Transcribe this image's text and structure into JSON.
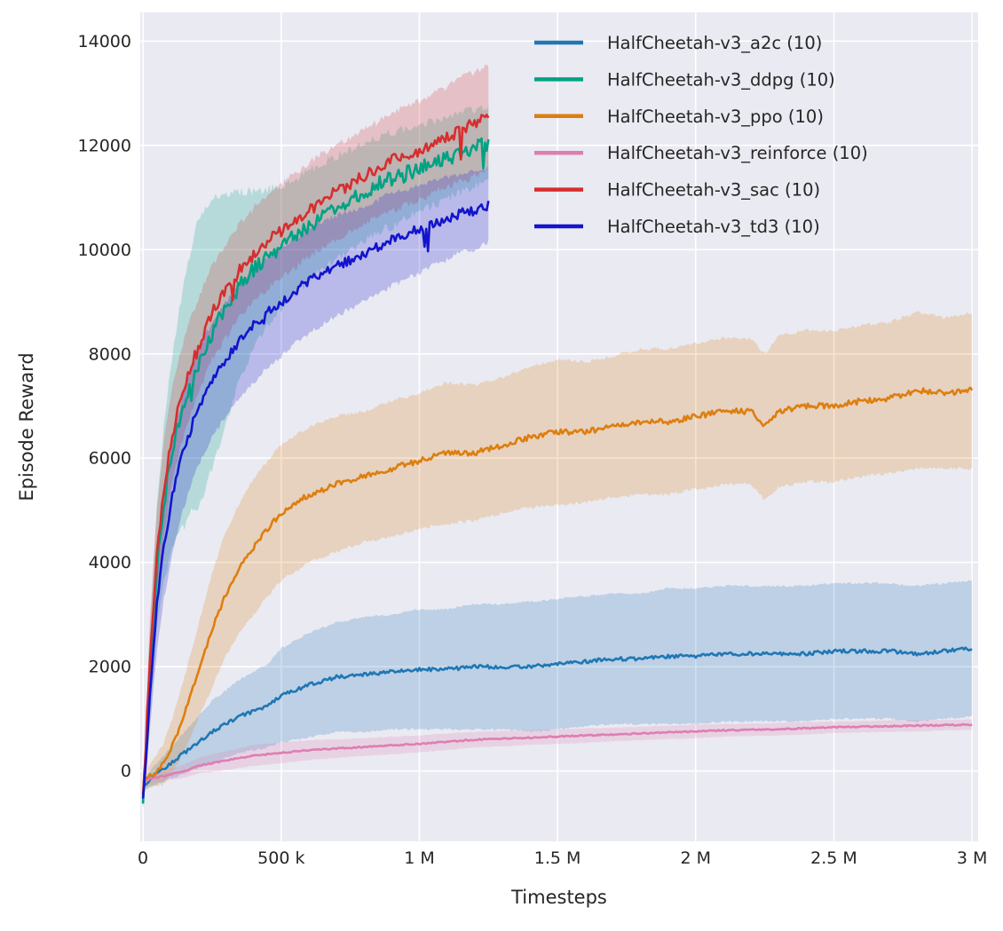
{
  "chart_data": {
    "type": "line",
    "title": "",
    "xlabel": "Timesteps",
    "ylabel": "Episode Reward",
    "x_unit": "thousands of timesteps",
    "xlim": [
      -10,
      3022
    ],
    "ylim": [
      -1350,
      14550
    ],
    "grid": true,
    "background": "#eaeaf2",
    "grid_color": "#ffffff",
    "text_color": "#262626",
    "band_opacity": 0.22,
    "legend_position": "upper right inside",
    "x_ticks": [
      {
        "v": 0,
        "label": "0"
      },
      {
        "v": 500,
        "label": "500 k"
      },
      {
        "v": 1000,
        "label": "1 M"
      },
      {
        "v": 1500,
        "label": "1.5 M"
      },
      {
        "v": 2000,
        "label": "2 M"
      },
      {
        "v": 2500,
        "label": "2.5 M"
      },
      {
        "v": 3000,
        "label": "3 M"
      }
    ],
    "y_ticks": [
      {
        "v": 0,
        "label": "0"
      },
      {
        "v": 2000,
        "label": "2000"
      },
      {
        "v": 4000,
        "label": "4000"
      },
      {
        "v": 6000,
        "label": "6000"
      },
      {
        "v": 8000,
        "label": "8000"
      },
      {
        "v": 10000,
        "label": "10000"
      },
      {
        "v": 12000,
        "label": "12000"
      },
      {
        "v": 14000,
        "label": "14000"
      }
    ],
    "series": [
      {
        "name": "HalfCheetah-v3_a2c (10)",
        "key": "a2c",
        "color": "#1f77b4",
        "noise": 35,
        "spiky": false,
        "x": [
          0,
          25,
          50,
          75,
          100,
          150,
          200,
          250,
          300,
          350,
          400,
          450,
          500,
          600,
          700,
          800,
          900,
          1000,
          1100,
          1200,
          1300,
          1400,
          1500,
          1600,
          1700,
          1800,
          1900,
          2000,
          2100,
          2200,
          2250,
          2300,
          2400,
          2500,
          2600,
          2700,
          2800,
          2900,
          3000
        ],
        "mean": [
          -300,
          -150,
          -50,
          50,
          150,
          350,
          550,
          750,
          900,
          1050,
          1150,
          1250,
          1450,
          1650,
          1800,
          1850,
          1900,
          1950,
          1950,
          2000,
          2000,
          2000,
          2050,
          2100,
          2150,
          2150,
          2200,
          2200,
          2250,
          2250,
          2250,
          2250,
          2250,
          2300,
          2300,
          2300,
          2250,
          2300,
          2350
        ],
        "band": [
          100,
          150,
          200,
          250,
          300,
          400,
          500,
          600,
          650,
          700,
          750,
          800,
          900,
          1000,
          1050,
          1100,
          1100,
          1150,
          1150,
          1200,
          1200,
          1250,
          1250,
          1250,
          1250,
          1250,
          1300,
          1300,
          1300,
          1300,
          1300,
          1300,
          1300,
          1300,
          1300,
          1300,
          1300,
          1300,
          1300
        ]
      },
      {
        "name": "HalfCheetah-v3_ddpg (10)",
        "key": "ddpg",
        "color": "#00a284",
        "noise": 150,
        "spiky": true,
        "x": [
          0,
          10,
          25,
          50,
          75,
          100,
          125,
          150,
          175,
          200,
          225,
          250,
          275,
          300,
          350,
          400,
          450,
          500,
          550,
          600,
          650,
          700,
          750,
          800,
          850,
          900,
          950,
          1000,
          1050,
          1100,
          1150,
          1200,
          1250
        ],
        "mean": [
          -500,
          300,
          1800,
          3900,
          5100,
          6000,
          6600,
          7100,
          7500,
          7800,
          8100,
          8400,
          8650,
          8900,
          9300,
          9600,
          9850,
          10050,
          10250,
          10450,
          10650,
          10800,
          10950,
          11100,
          11250,
          11350,
          11450,
          11550,
          11650,
          11750,
          11850,
          11950,
          12050
        ],
        "band": [
          200,
          500,
          900,
          1200,
          1500,
          1800,
          2000,
          2400,
          2500,
          2800,
          2700,
          2600,
          2400,
          2200,
          1800,
          1500,
          1300,
          1200,
          1100,
          1050,
          1000,
          1000,
          950,
          950,
          900,
          900,
          850,
          850,
          800,
          800,
          750,
          750,
          700
        ]
      },
      {
        "name": "HalfCheetah-v3_ppo (10)",
        "key": "ppo",
        "color": "#dd7e0e",
        "noise": 55,
        "spiky": false,
        "x": [
          0,
          25,
          50,
          75,
          100,
          150,
          200,
          250,
          300,
          350,
          400,
          450,
          500,
          600,
          700,
          800,
          900,
          1000,
          1100,
          1200,
          1300,
          1400,
          1500,
          1600,
          1700,
          1800,
          1900,
          2000,
          2100,
          2200,
          2250,
          2300,
          2400,
          2500,
          2600,
          2700,
          2800,
          2900,
          3000
        ],
        "mean": [
          -200,
          -100,
          0,
          150,
          400,
          1100,
          1900,
          2700,
          3400,
          3900,
          4300,
          4650,
          4950,
          5300,
          5500,
          5650,
          5800,
          5950,
          6100,
          6100,
          6250,
          6400,
          6500,
          6500,
          6600,
          6700,
          6700,
          6800,
          6900,
          6900,
          6600,
          6900,
          7000,
          7000,
          7100,
          7150,
          7300,
          7250,
          7300
        ],
        "band": [
          150,
          200,
          300,
          400,
          500,
          700,
          900,
          1100,
          1200,
          1250,
          1300,
          1300,
          1300,
          1300,
          1300,
          1250,
          1300,
          1300,
          1350,
          1300,
          1300,
          1350,
          1400,
          1350,
          1350,
          1400,
          1400,
          1400,
          1400,
          1400,
          1400,
          1450,
          1450,
          1450,
          1450,
          1450,
          1500,
          1450,
          1500
        ]
      },
      {
        "name": "HalfCheetah-v3_reinforce (10)",
        "key": "reinforce",
        "color": "#dd7fb0",
        "noise": 12,
        "spiky": false,
        "x": [
          0,
          25,
          50,
          75,
          100,
          150,
          200,
          250,
          300,
          350,
          400,
          450,
          500,
          600,
          700,
          800,
          900,
          1000,
          1100,
          1200,
          1300,
          1400,
          1500,
          1600,
          1700,
          1800,
          1900,
          2000,
          2100,
          2200,
          2250,
          2300,
          2400,
          2500,
          2600,
          2700,
          2800,
          2900,
          3000
        ],
        "mean": [
          -200,
          -150,
          -120,
          -100,
          -60,
          0,
          100,
          150,
          200,
          250,
          300,
          320,
          350,
          400,
          430,
          460,
          490,
          520,
          560,
          600,
          620,
          640,
          660,
          680,
          700,
          720,
          740,
          760,
          780,
          790,
          795,
          800,
          820,
          840,
          850,
          860,
          870,
          880,
          890
        ],
        "band": [
          80,
          90,
          100,
          100,
          110,
          130,
          150,
          170,
          180,
          190,
          200,
          200,
          200,
          190,
          180,
          170,
          170,
          160,
          160,
          150,
          150,
          140,
          140,
          140,
          130,
          130,
          130,
          130,
          120,
          120,
          120,
          120,
          120,
          110,
          110,
          110,
          110,
          100,
          100
        ]
      },
      {
        "name": "HalfCheetah-v3_sac (10)",
        "key": "sac",
        "color": "#d62e2e",
        "noise": 120,
        "spiky": true,
        "x": [
          0,
          10,
          25,
          50,
          75,
          100,
          125,
          150,
          175,
          200,
          225,
          250,
          275,
          300,
          350,
          400,
          450,
          500,
          550,
          600,
          650,
          700,
          750,
          800,
          850,
          900,
          950,
          1000,
          1050,
          1100,
          1150,
          1200,
          1250
        ],
        "mean": [
          -500,
          500,
          2200,
          4200,
          5400,
          6300,
          6900,
          7400,
          7800,
          8100,
          8500,
          8800,
          9000,
          9200,
          9600,
          9900,
          10150,
          10350,
          10550,
          10750,
          10950,
          11100,
          11250,
          11400,
          11550,
          11700,
          11800,
          11900,
          12050,
          12150,
          12300,
          12400,
          12550
        ],
        "band": [
          150,
          400,
          700,
          800,
          900,
          900,
          900,
          900,
          900,
          900,
          900,
          900,
          900,
          900,
          900,
          900,
          900,
          900,
          900,
          900,
          900,
          900,
          900,
          900,
          900,
          950,
          950,
          950,
          950,
          950,
          1000,
          1000,
          1000
        ]
      },
      {
        "name": "HalfCheetah-v3_td3 (10)",
        "key": "td3",
        "color": "#1414cc",
        "noise": 90,
        "spiky": true,
        "x": [
          0,
          10,
          25,
          50,
          75,
          100,
          125,
          150,
          175,
          200,
          225,
          250,
          275,
          300,
          350,
          400,
          450,
          500,
          550,
          600,
          650,
          700,
          750,
          800,
          850,
          900,
          950,
          1000,
          1050,
          1100,
          1150,
          1200,
          1250
        ],
        "mean": [
          -600,
          200,
          1500,
          3200,
          4300,
          5100,
          5700,
          6200,
          6600,
          6950,
          7250,
          7500,
          7700,
          7900,
          8250,
          8550,
          8800,
          9000,
          9200,
          9400,
          9550,
          9700,
          9800,
          9900,
          10050,
          10200,
          10300,
          10400,
          10500,
          10600,
          10700,
          10750,
          10850
        ],
        "band": [
          150,
          400,
          700,
          900,
          1000,
          1100,
          1100,
          1100,
          1100,
          1100,
          1100,
          1100,
          1100,
          1100,
          1100,
          1100,
          1050,
          1050,
          1000,
          1000,
          1000,
          950,
          950,
          900,
          900,
          900,
          850,
          850,
          800,
          800,
          750,
          750,
          700
        ]
      }
    ]
  }
}
